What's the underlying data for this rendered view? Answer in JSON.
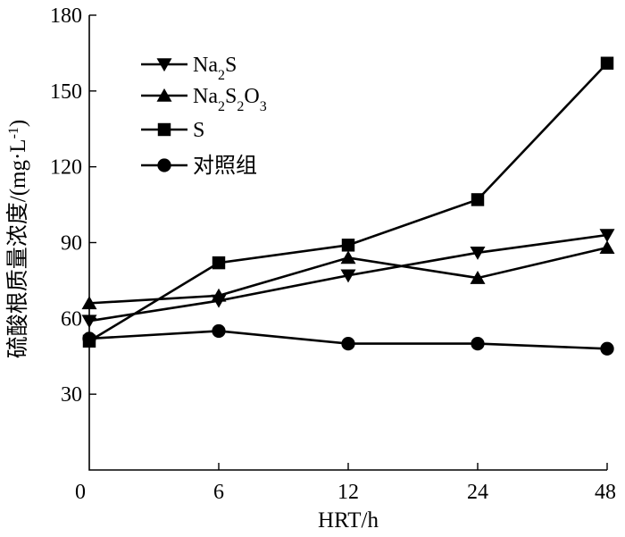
{
  "chart_data": {
    "type": "line",
    "xlabel": "HRT/h",
    "ylabel": "硫酸根质量浓度/(mg·L",
    "ylabel_superscript": "-1",
    "ylabel_close": ")",
    "categories": [
      "0",
      "6",
      "12",
      "24",
      "48"
    ],
    "ylim": [
      0,
      180
    ],
    "yticks": [
      0,
      30,
      60,
      90,
      120,
      150,
      180
    ],
    "grid": false,
    "legend_position": "top-left",
    "series": [
      {
        "name": "Na2S",
        "marker": "triangle-down",
        "values": [
          59,
          67,
          77,
          86,
          93
        ]
      },
      {
        "name": "Na2S2O3",
        "marker": "triangle-up",
        "values": [
          66,
          69,
          84,
          76,
          88
        ]
      },
      {
        "name": "S",
        "marker": "square",
        "values": [
          51,
          82,
          89,
          107,
          161
        ]
      },
      {
        "name": "对照组",
        "marker": "circle",
        "values": [
          52,
          55,
          50,
          50,
          48
        ]
      }
    ]
  }
}
